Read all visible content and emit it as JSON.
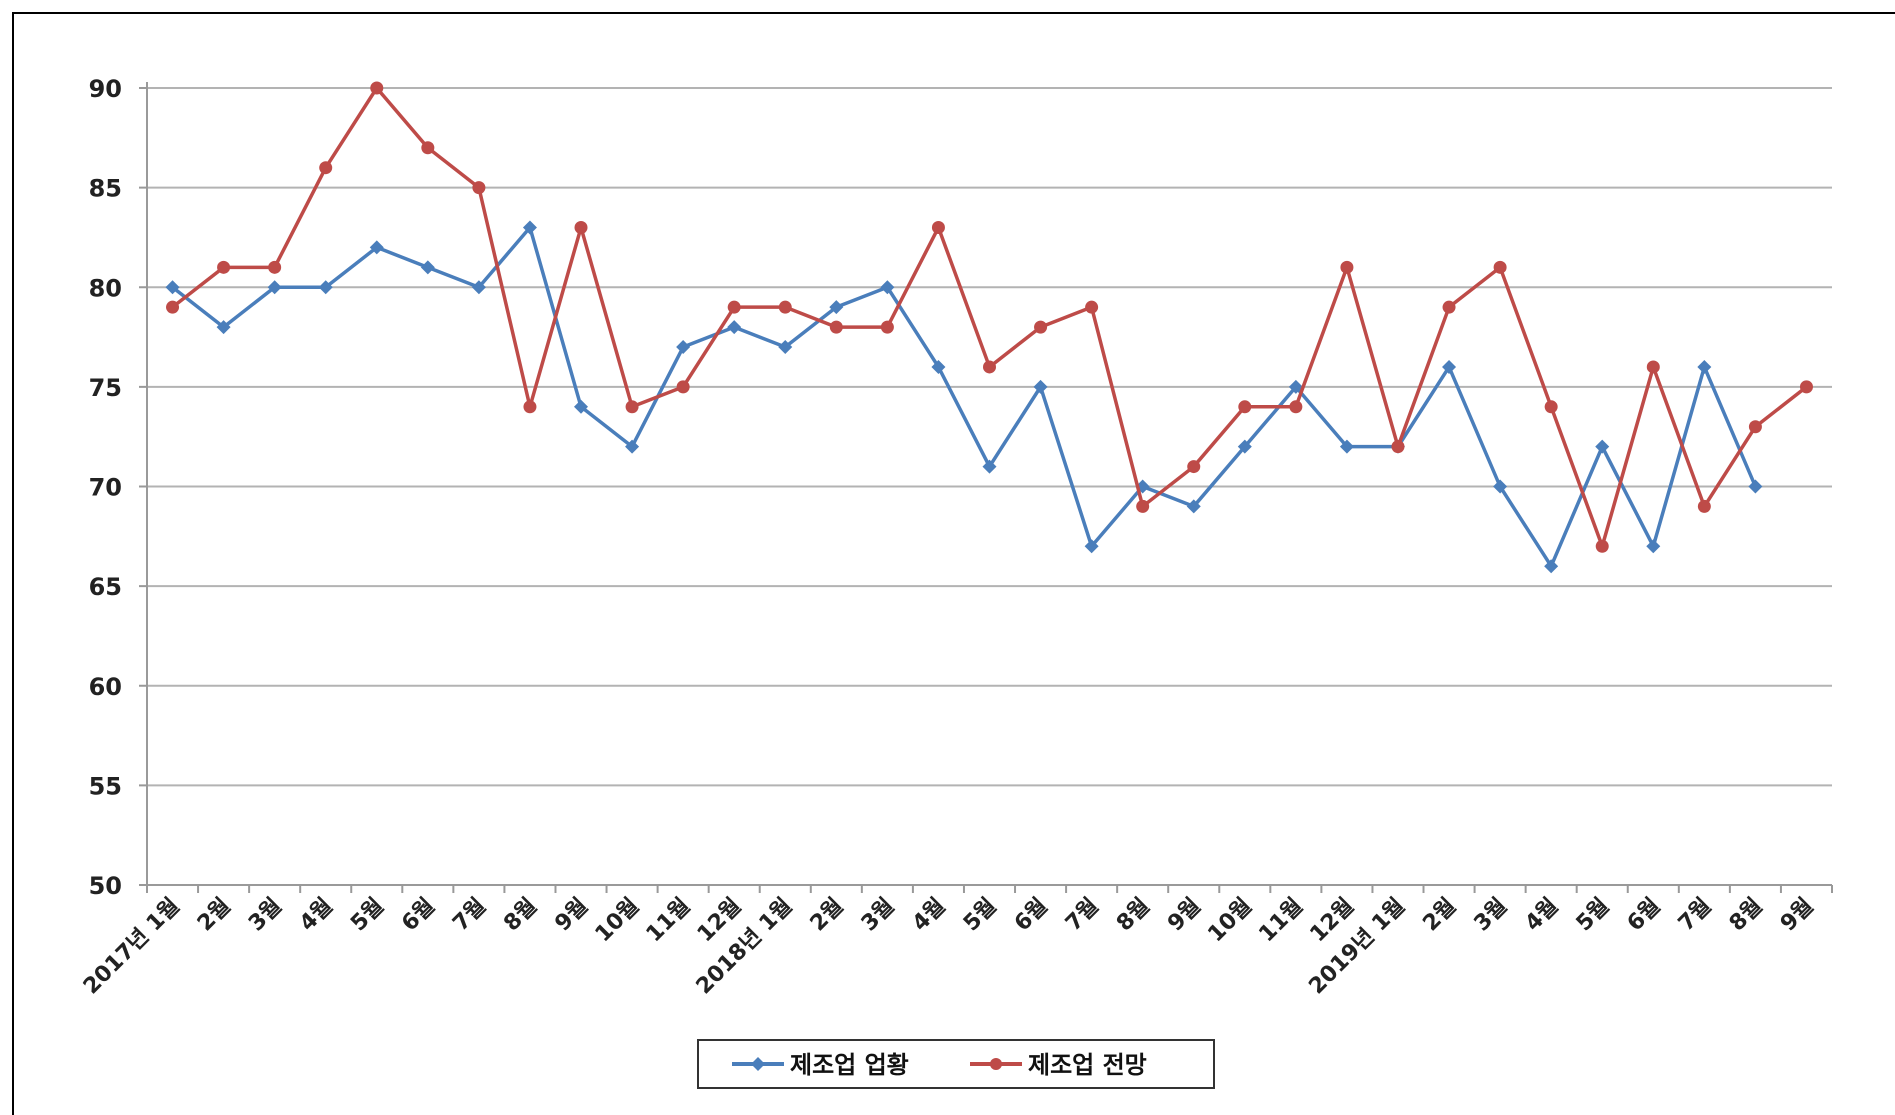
{
  "chart_data": {
    "type": "line",
    "title": "",
    "xlabel": "",
    "ylabel": "",
    "ylim": [
      50,
      90
    ],
    "y_ticks": [
      50,
      55,
      60,
      65,
      70,
      75,
      80,
      85,
      90
    ],
    "grid": true,
    "legend_position": "bottom",
    "categories": [
      "2017년 1월",
      "2월",
      "3월",
      "4월",
      "5월",
      "6월",
      "7월",
      "8월",
      "9월",
      "10월",
      "11월",
      "12월",
      "2018년 1월",
      "2월",
      "3월",
      "4월",
      "5월",
      "6월",
      "7월",
      "8월",
      "9월",
      "10월",
      "11월",
      "12월",
      "2019년 1월",
      "2월",
      "3월",
      "4월",
      "5월",
      "6월",
      "7월",
      "8월",
      "9월"
    ],
    "series": [
      {
        "name": "제조업 업황",
        "color": "#4a7ebb",
        "marker": "diamond",
        "values": [
          80,
          78,
          80,
          80,
          82,
          81,
          80,
          83,
          74,
          72,
          77,
          78,
          77,
          79,
          80,
          76,
          71,
          75,
          67,
          70,
          69,
          72,
          75,
          72,
          72,
          76,
          70,
          66,
          72,
          67,
          76,
          70,
          null
        ]
      },
      {
        "name": "제조업 전망",
        "color": "#be4b48",
        "marker": "circle",
        "values": [
          79,
          81,
          81,
          86,
          90,
          87,
          85,
          74,
          83,
          74,
          75,
          79,
          79,
          78,
          78,
          83,
          76,
          78,
          79,
          69,
          71,
          74,
          74,
          81,
          72,
          79,
          81,
          74,
          67,
          76,
          69,
          73,
          75
        ]
      }
    ]
  }
}
